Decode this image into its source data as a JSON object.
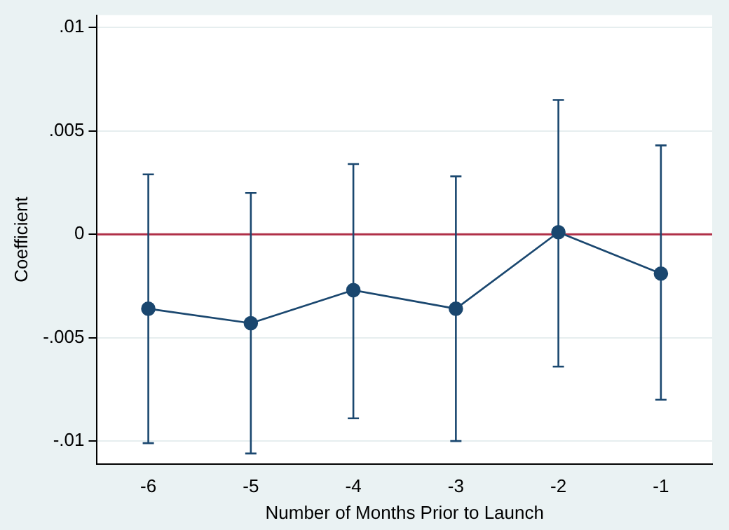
{
  "chart_data": {
    "type": "line",
    "xlabel": "Number of Months Prior to Launch",
    "ylabel": "Coefficient",
    "x": [
      -6,
      -5,
      -4,
      -3,
      -2,
      -1
    ],
    "series": [
      {
        "color": "#1a476f",
        "values": [
          -0.0036,
          -0.0043,
          -0.0027,
          -0.0036,
          0.0001,
          -0.0019
        ],
        "errors": [
          [
            -0.0101,
            0.0029
          ],
          [
            -0.0106,
            0.002
          ],
          [
            -0.0089,
            0.0034
          ],
          [
            -0.01,
            0.0028
          ],
          [
            -0.0064,
            0.0065
          ],
          [
            -0.008,
            0.0043
          ]
        ]
      }
    ],
    "xlim": [
      -6.5,
      -0.5
    ],
    "xticks": [
      -6,
      -5,
      -4,
      -3,
      -2,
      -1
    ],
    "ylim": [
      -0.0111,
      0.0106
    ],
    "yticks": [
      {
        "value": -0.01,
        "label": "-.01"
      },
      {
        "value": -0.005,
        "label": "-.005"
      },
      0,
      {
        "value": 0.005,
        "label": ".005"
      },
      {
        "value": 0.01,
        "label": ".01"
      }
    ],
    "ref_lines": [
      {
        "axis": "y",
        "value": 0,
        "color": "#b03048"
      }
    ],
    "grid": "y",
    "marker": "circle",
    "line_style": "solid",
    "legend": false
  }
}
